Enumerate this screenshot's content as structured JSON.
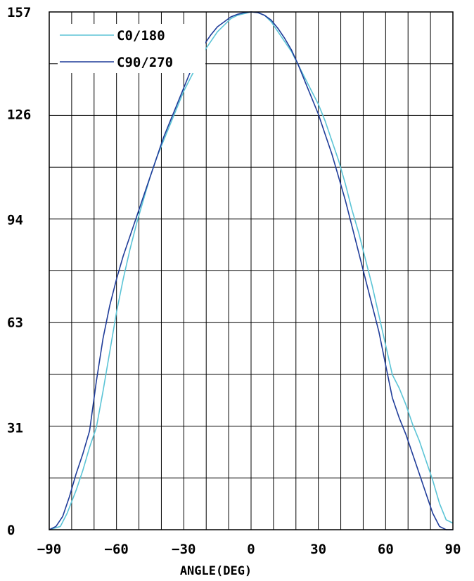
{
  "chart_data": {
    "type": "line",
    "title": "",
    "xlabel": "ANGLE(DEG)",
    "ylabel": "",
    "xlim": [
      -90,
      90
    ],
    "ylim": [
      0,
      157
    ],
    "x_ticks": [
      -90,
      -60,
      -30,
      0,
      30,
      60,
      90
    ],
    "y_ticks": [
      0,
      31,
      63,
      94,
      126,
      157
    ],
    "x_tick_labels": [
      "-90",
      "-60",
      "-30",
      "0",
      "30",
      "60",
      "90"
    ],
    "y_tick_labels": [
      "0",
      "31",
      "63",
      "94",
      "126",
      "157"
    ],
    "grid": true,
    "legend": "top-left",
    "series": [
      {
        "name": "C0/180",
        "color": "#5bc4d6",
        "x": [
          -90,
          -85,
          -82,
          -78,
          -75,
          -72,
          -69,
          -66,
          -63,
          -60,
          -57,
          -54,
          -51,
          -48,
          -45,
          -42,
          -39,
          -36,
          -33,
          -30,
          -27,
          -24,
          -21,
          -18,
          -15,
          -12,
          -9,
          -6,
          -3,
          0,
          3,
          6,
          9,
          12,
          15,
          18,
          21,
          24,
          27,
          30,
          33,
          36,
          39,
          42,
          45,
          48,
          51,
          54,
          57,
          60,
          63,
          66,
          69,
          72,
          75,
          78,
          81,
          84,
          87,
          90
        ],
        "values": [
          0,
          1,
          5,
          12,
          18,
          25,
          31,
          42,
          54,
          66,
          76,
          85,
          93,
          100,
          107,
          113,
          118,
          123,
          128,
          133,
          137,
          141,
          145,
          148,
          151,
          153,
          155,
          156,
          156.5,
          157,
          156.8,
          156,
          154,
          151,
          148,
          145,
          141,
          137,
          133,
          129,
          124,
          118,
          112,
          105,
          97,
          90,
          82,
          74,
          65,
          56,
          47,
          43,
          38,
          32,
          27,
          21,
          15,
          8,
          3,
          2
        ]
      },
      {
        "name": "C90/270",
        "color": "#1f3c99",
        "x": [
          -90,
          -87,
          -84,
          -81,
          -78,
          -75,
          -72,
          -69,
          -66,
          -63,
          -60,
          -57,
          -54,
          -51,
          -48,
          -45,
          -42,
          -39,
          -36,
          -33,
          -30,
          -27,
          -24,
          -21,
          -18,
          -15,
          -12,
          -9,
          -6,
          -3,
          0,
          3,
          6,
          9,
          12,
          15,
          18,
          21,
          24,
          27,
          30,
          33,
          36,
          39,
          42,
          45,
          48,
          51,
          54,
          57,
          60,
          63,
          66,
          69,
          72,
          75,
          78,
          81,
          84,
          87,
          90
        ],
        "values": [
          0,
          1,
          4,
          10,
          17,
          23,
          30,
          45,
          58,
          68,
          76,
          83,
          89,
          95,
          101,
          107,
          113,
          119,
          124,
          129,
          134,
          139,
          143,
          147,
          150,
          152.5,
          154,
          155.5,
          156.3,
          156.8,
          157,
          156.8,
          156,
          154.5,
          152,
          149,
          145.5,
          141,
          136,
          131,
          126,
          120,
          114,
          107,
          100,
          92,
          84,
          76,
          68,
          60,
          50,
          40,
          34,
          29,
          23,
          17,
          11,
          5,
          1,
          0,
          0
        ]
      }
    ]
  }
}
